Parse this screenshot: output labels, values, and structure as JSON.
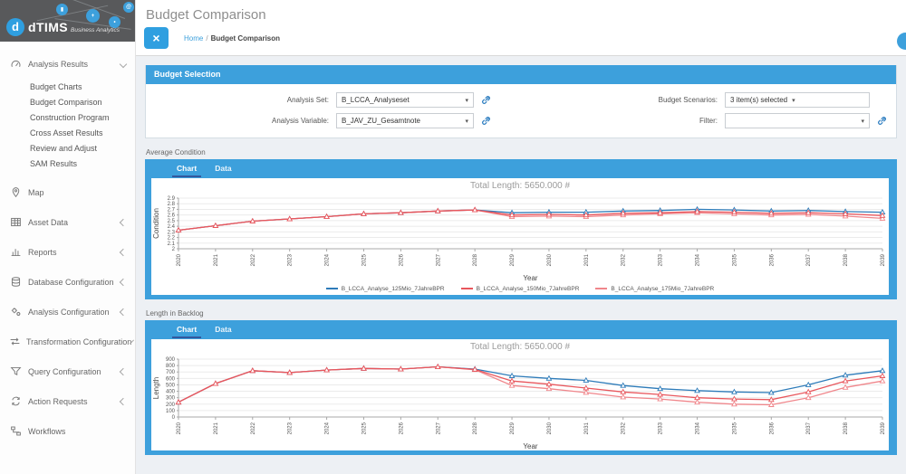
{
  "logo": {
    "mark": "d",
    "title": "dTIMS",
    "subtitle": "Business Analytics"
  },
  "topbar": {
    "title": "Budget Comparison",
    "close_label": "×",
    "breadcrumb": {
      "home": "Home",
      "separator": "/",
      "current": "Budget Comparison"
    }
  },
  "sidebar": {
    "items": [
      {
        "label": "Analysis Results",
        "icon": "gauge-icon",
        "expanded": true,
        "children": [
          "Budget Charts",
          "Budget Comparison",
          "Construction Program",
          "Cross Asset Results",
          "Review and Adjust",
          "SAM Results"
        ]
      },
      {
        "label": "Map",
        "icon": "map-pin-icon"
      },
      {
        "label": "Asset Data",
        "icon": "table-icon",
        "collapsed": true
      },
      {
        "label": "Reports",
        "icon": "bar-chart-icon",
        "collapsed": true
      },
      {
        "label": "Database Configuration",
        "icon": "database-icon",
        "collapsed": true
      },
      {
        "label": "Analysis Configuration",
        "icon": "gears-icon",
        "collapsed": true
      },
      {
        "label": "Transformation Configuration",
        "icon": "transform-icon",
        "collapsed": true
      },
      {
        "label": "Query Configuration",
        "icon": "query-icon",
        "collapsed": true
      },
      {
        "label": "Action Requests",
        "icon": "sync-icon",
        "collapsed": true
      },
      {
        "label": "Workflows",
        "icon": "workflow-icon"
      }
    ]
  },
  "budget_selection": {
    "header": "Budget Selection",
    "fields": {
      "analysis_set": {
        "label": "Analysis Set:",
        "value": "B_LCCA_Analyseset"
      },
      "analysis_variable": {
        "label": "Analysis Variable:",
        "value": "B_JAV_ZU_Gesamtnote"
      },
      "budget_scenarios": {
        "label": "Budget Scenarios:",
        "value": "3 item(s) selected"
      },
      "filter": {
        "label": "Filter:",
        "value": ""
      }
    },
    "caret": "▾"
  },
  "panels": [
    {
      "label": "Average Condition",
      "tabs": [
        "Chart",
        "Data"
      ],
      "active_tab": "Chart"
    },
    {
      "label": "Length in Backlog",
      "tabs": [
        "Chart",
        "Data"
      ],
      "active_tab": "Chart"
    }
  ],
  "chart_data": [
    {
      "type": "line",
      "title": "Total Length: 5650.000 #",
      "xlabel": "Year",
      "ylabel": "Condition",
      "x": [
        2020,
        2021,
        2022,
        2023,
        2024,
        2025,
        2026,
        2027,
        2028,
        2029,
        2030,
        2031,
        2032,
        2033,
        2034,
        2035,
        2036,
        2037,
        2038,
        2039
      ],
      "ylim": [
        2.0,
        2.9
      ],
      "ytick_step": 0.1,
      "grid": true,
      "legend_position": "bottom",
      "show_legend": true,
      "series": [
        {
          "name": "B_LCCA_Analyse_125Mio_7JahreBPR",
          "color": "#2d7bb9",
          "values": [
            2.33,
            2.41,
            2.49,
            2.53,
            2.57,
            2.62,
            2.64,
            2.67,
            2.69,
            2.64,
            2.65,
            2.65,
            2.67,
            2.68,
            2.7,
            2.69,
            2.67,
            2.68,
            2.66,
            2.65
          ]
        },
        {
          "name": "B_LCCA_Analyse_150Mio_7JahreBPR",
          "color": "#e8565c",
          "values": [
            2.33,
            2.41,
            2.49,
            2.53,
            2.57,
            2.62,
            2.64,
            2.67,
            2.69,
            2.6,
            2.61,
            2.6,
            2.63,
            2.64,
            2.66,
            2.65,
            2.63,
            2.64,
            2.62,
            2.59
          ]
        },
        {
          "name": "B_LCCA_Analyse_175Mio_7JahreBPR",
          "color": "#f0868b",
          "values": [
            2.33,
            2.41,
            2.49,
            2.53,
            2.57,
            2.62,
            2.64,
            2.67,
            2.69,
            2.57,
            2.58,
            2.57,
            2.6,
            2.62,
            2.64,
            2.62,
            2.6,
            2.61,
            2.58,
            2.54
          ]
        }
      ]
    },
    {
      "type": "line",
      "title": "Total Length: 5650.000 #",
      "xlabel": "Year",
      "ylabel": "Length",
      "x": [
        2020,
        2021,
        2022,
        2023,
        2024,
        2025,
        2026,
        2027,
        2028,
        2029,
        2030,
        2031,
        2032,
        2033,
        2034,
        2035,
        2036,
        2037,
        2038,
        2039
      ],
      "ylim": [
        0,
        900
      ],
      "ytick_step": 100,
      "grid": true,
      "legend_position": "none",
      "show_legend": false,
      "series": [
        {
          "name": "B_LCCA_Analyse_125Mio_7JahreBPR",
          "color": "#2d7bb9",
          "values": [
            230,
            520,
            720,
            690,
            730,
            755,
            745,
            780,
            745,
            640,
            600,
            570,
            490,
            440,
            410,
            390,
            380,
            500,
            650,
            720
          ]
        },
        {
          "name": "B_LCCA_Analyse_150Mio_7JahreBPR",
          "color": "#e8565c",
          "values": [
            230,
            520,
            720,
            690,
            730,
            755,
            745,
            780,
            740,
            560,
            510,
            450,
            390,
            350,
            300,
            280,
            270,
            390,
            560,
            640
          ]
        },
        {
          "name": "B_LCCA_Analyse_175Mio_7JahreBPR",
          "color": "#f0868b",
          "values": [
            230,
            520,
            720,
            690,
            730,
            755,
            745,
            780,
            735,
            490,
            440,
            380,
            310,
            280,
            230,
            200,
            190,
            300,
            460,
            560
          ]
        }
      ]
    }
  ],
  "colors": {
    "accent": "#3da0dc",
    "tab_underline": "#33589e",
    "line_blue": "#2d7bb9",
    "line_red": "#e8565c",
    "line_light_red": "#f0868b",
    "logo_bg": "#58595b"
  }
}
